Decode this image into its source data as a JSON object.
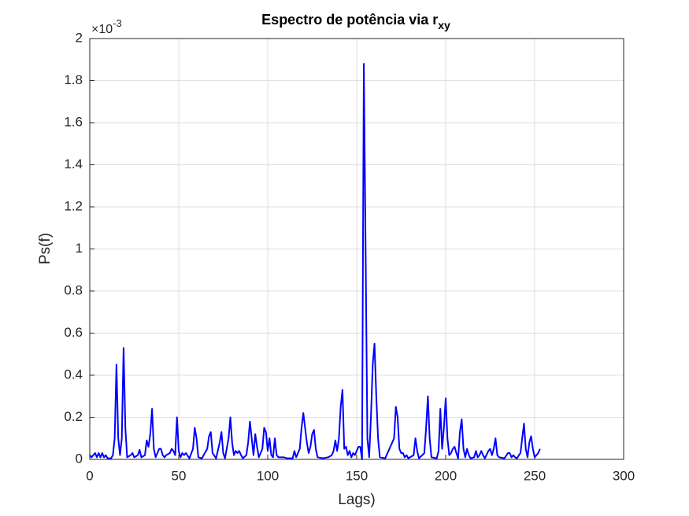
{
  "chart_data": {
    "type": "line",
    "title": "Espectro de potência via r",
    "title_subscript": "xy",
    "x_label": "Lags)",
    "y_label": "Ps(f)",
    "y_multiplier": {
      "base": "×10",
      "power": "-3"
    },
    "color": "#0000ff",
    "grid": true,
    "xlim": [
      0,
      300
    ],
    "xticks": [
      0,
      50,
      100,
      150,
      200,
      250,
      300
    ],
    "ylim": [
      0,
      2
    ],
    "yticks": [
      0,
      0.2,
      0.4,
      0.6,
      0.8,
      1,
      1.2,
      1.4,
      1.6,
      1.8,
      2
    ],
    "x": [
      0,
      1,
      2,
      3,
      4,
      5,
      6,
      7,
      8,
      9,
      10,
      12,
      13,
      14,
      15,
      16,
      17,
      18,
      19,
      20,
      21,
      23,
      24,
      25,
      27,
      28,
      29,
      31,
      32,
      33,
      34,
      35,
      36,
      37,
      39,
      40,
      41,
      42,
      43,
      45,
      46,
      47,
      48,
      49,
      50,
      51,
      52,
      53,
      54,
      56,
      58,
      59,
      60,
      61,
      63,
      66,
      67,
      68,
      69,
      71,
      73,
      74,
      75,
      76,
      78,
      79,
      80,
      81,
      82,
      83,
      84,
      85,
      86,
      88,
      89,
      90,
      91,
      92,
      93,
      94,
      95,
      97,
      98,
      99,
      100,
      101,
      102,
      103,
      104,
      105,
      106,
      109,
      111,
      114,
      115,
      116,
      118,
      119,
      120,
      121,
      122,
      123,
      124,
      125,
      126,
      127,
      128,
      131,
      134,
      136,
      137,
      138,
      139,
      140,
      141,
      142,
      143,
      144,
      145,
      146,
      147,
      148,
      149,
      150,
      151,
      152,
      153,
      154,
      155,
      156,
      157,
      158,
      159,
      160,
      161,
      162,
      163,
      166,
      171,
      172,
      173,
      174,
      175,
      176,
      177,
      178,
      179,
      182,
      183,
      184,
      185,
      188,
      189,
      190,
      191,
      192,
      195,
      196,
      197,
      198,
      199,
      200,
      201,
      202,
      203,
      204,
      205,
      206,
      207,
      208,
      209,
      210,
      211,
      212,
      213,
      214,
      216,
      217,
      218,
      219,
      220,
      221,
      222,
      224,
      225,
      226,
      227,
      228,
      229,
      230,
      233,
      235,
      236,
      237,
      238,
      239,
      240,
      242,
      243,
      244,
      245,
      246,
      247,
      248,
      249,
      250,
      252,
      253
    ],
    "values": [
      0.02,
      0.01,
      0.02,
      0.03,
      0.01,
      0.03,
      0.01,
      0.03,
      0.01,
      0.02,
      0.005,
      0.005,
      0.02,
      0.1,
      0.45,
      0.1,
      0.02,
      0.1,
      0.53,
      0.15,
      0.01,
      0.02,
      0.03,
      0.01,
      0.02,
      0.045,
      0.01,
      0.02,
      0.09,
      0.06,
      0.12,
      0.24,
      0.05,
      0.01,
      0.05,
      0.05,
      0.02,
      0.01,
      0.02,
      0.03,
      0.05,
      0.04,
      0.02,
      0.2,
      0.04,
      0.01,
      0.03,
      0.02,
      0.03,
      0.005,
      0.05,
      0.15,
      0.1,
      0.01,
      0.005,
      0.05,
      0.11,
      0.13,
      0.03,
      0.005,
      0.08,
      0.13,
      0.03,
      0.005,
      0.1,
      0.2,
      0.08,
      0.02,
      0.04,
      0.03,
      0.04,
      0.02,
      0.005,
      0.02,
      0.08,
      0.18,
      0.1,
      0.02,
      0.12,
      0.06,
      0.01,
      0.05,
      0.15,
      0.13,
      0.04,
      0.1,
      0.02,
      0.01,
      0.1,
      0.02,
      0.01,
      0.01,
      0.005,
      0.005,
      0.04,
      0.01,
      0.05,
      0.15,
      0.22,
      0.15,
      0.08,
      0.03,
      0.06,
      0.12,
      0.14,
      0.05,
      0.01,
      0.005,
      0.01,
      0.02,
      0.04,
      0.09,
      0.04,
      0.1,
      0.25,
      0.33,
      0.05,
      0.06,
      0.02,
      0.04,
      0.01,
      0.03,
      0.02,
      0.04,
      0.06,
      0.06,
      0,
      1.88,
      1.0,
      0.1,
      0.01,
      0.2,
      0.45,
      0.55,
      0.3,
      0.1,
      0.01,
      0.005,
      0.1,
      0.25,
      0.2,
      0.05,
      0.03,
      0.03,
      0.01,
      0.02,
      0.005,
      0.02,
      0.1,
      0.04,
      0.005,
      0.03,
      0.15,
      0.3,
      0.1,
      0.01,
      0.005,
      0.04,
      0.24,
      0.05,
      0.15,
      0.29,
      0.1,
      0.02,
      0.03,
      0.05,
      0.06,
      0.03,
      0.005,
      0.13,
      0.19,
      0.05,
      0.01,
      0.05,
      0.02,
      0.005,
      0.01,
      0.04,
      0.01,
      0.02,
      0.04,
      0.02,
      0.005,
      0.04,
      0.05,
      0.02,
      0.05,
      0.1,
      0.02,
      0.01,
      0.005,
      0.03,
      0.03,
      0.01,
      0.02,
      0.01,
      0.005,
      0.03,
      0.1,
      0.17,
      0.05,
      0.01,
      0.08,
      0.11,
      0.05,
      0.01,
      0.03,
      0.05
    ]
  }
}
